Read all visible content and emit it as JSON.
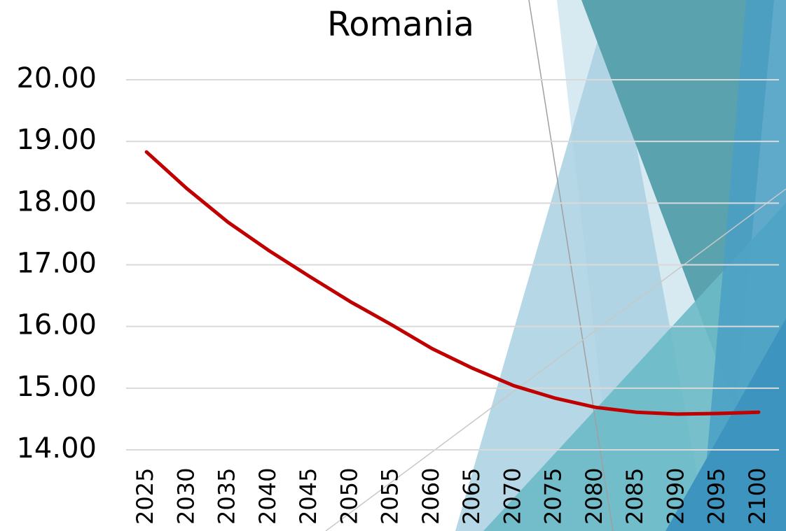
{
  "chart_data": {
    "type": "line",
    "title": "Romania",
    "categories": [
      "2025",
      "2030",
      "2035",
      "2040",
      "2045",
      "2050",
      "2055",
      "2060",
      "2065",
      "2070",
      "2075",
      "2080",
      "2085",
      "2090",
      "2095",
      "2100"
    ],
    "values": [
      18.83,
      18.23,
      17.69,
      17.23,
      16.81,
      16.4,
      16.03,
      15.64,
      15.32,
      15.04,
      14.84,
      14.69,
      14.61,
      14.58,
      14.59,
      14.61
    ],
    "color": "#c00000",
    "ylim": [
      14,
      20
    ],
    "yticks": [
      {
        "value": 14,
        "label": "14.00"
      },
      {
        "value": 15,
        "label": "15.00"
      },
      {
        "value": 16,
        "label": "16.00"
      },
      {
        "value": 17,
        "label": "17.00"
      },
      {
        "value": 18,
        "label": "18.00"
      },
      {
        "value": 19,
        "label": "19.00"
      },
      {
        "value": 20,
        "label": "20.00"
      }
    ],
    "grid": true
  }
}
